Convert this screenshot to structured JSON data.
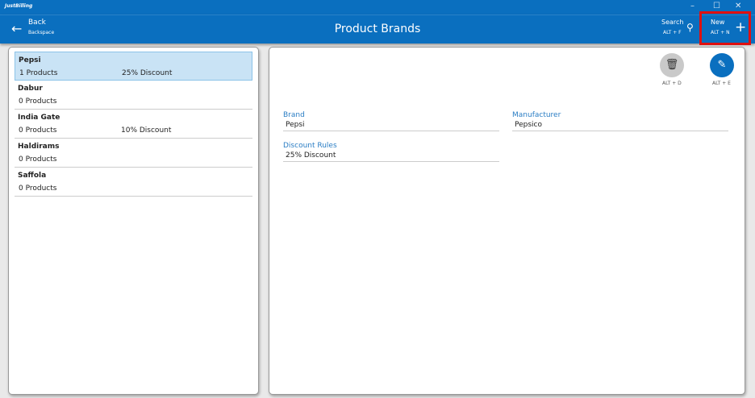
{
  "app": {
    "logo": "JustBilling",
    "title": "Product Brands"
  },
  "window": {
    "minimize": "–",
    "maximize": "☐",
    "close": "✕"
  },
  "header": {
    "back_label": "Back",
    "back_shortcut": "Backspace",
    "search_label": "Search",
    "search_shortcut": "ALT + F",
    "new_label": "New",
    "new_shortcut": "ALT + N"
  },
  "brands": [
    {
      "name": "Pepsi",
      "products": "1 Products",
      "discount": "25% Discount"
    },
    {
      "name": "Dabur",
      "products": "0 Products",
      "discount": ""
    },
    {
      "name": "India Gate",
      "products": "0 Products",
      "discount": "10% Discount"
    },
    {
      "name": "Haldirams",
      "products": "0 Products",
      "discount": ""
    },
    {
      "name": "Saffola",
      "products": "0 Products",
      "discount": ""
    }
  ],
  "detail": {
    "delete_shortcut": "ALT + D",
    "edit_shortcut": "ALT + E",
    "brand_label": "Brand",
    "brand_value": "Pepsi",
    "manufacturer_label": "Manufacturer",
    "manufacturer_value": "Pepsico",
    "discount_label": "Discount Rules",
    "discount_value": "25% Discount"
  },
  "colors": {
    "accent": "#0a6fbf",
    "highlight": "#e01010",
    "selected": "#c9e3f5"
  }
}
